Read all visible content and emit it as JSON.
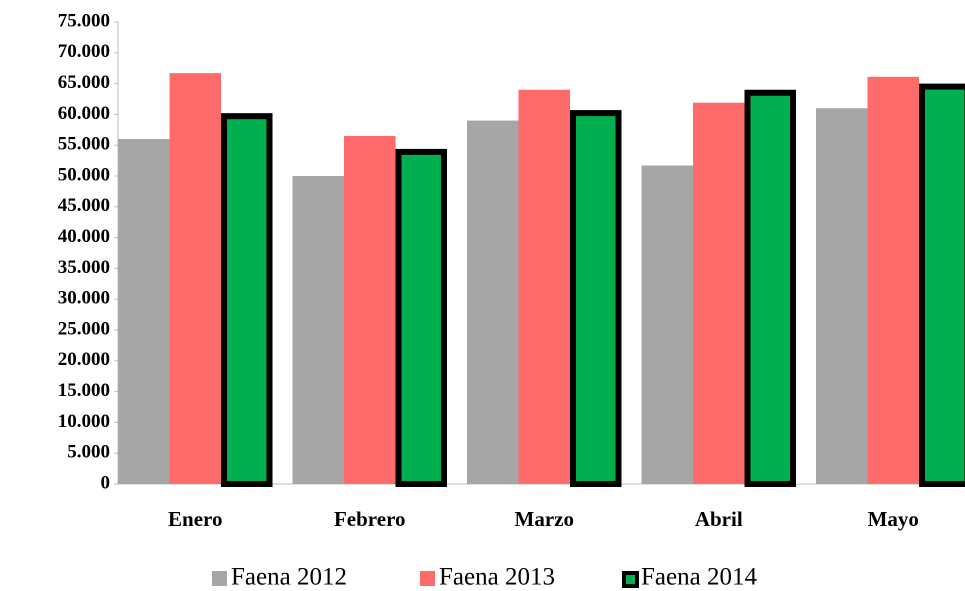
{
  "chart_data": {
    "type": "bar",
    "categories": [
      "Enero",
      "Febrero",
      "Marzo",
      "Abril",
      "Mayo"
    ],
    "series": [
      {
        "name": "Faena 2012",
        "color": "#a6a6a6",
        "values": [
          56000,
          50000,
          59000,
          51700,
          61000
        ]
      },
      {
        "name": "Faena 2013",
        "color": "#ff6b6b",
        "values": [
          66700,
          56500,
          64000,
          61900,
          66100
        ]
      },
      {
        "name": "Faena 2014",
        "color": "#00b050",
        "edgecolor": "#000000",
        "values": [
          60200,
          54400,
          60700,
          64000,
          65000
        ]
      }
    ],
    "ylim": [
      0,
      75000
    ],
    "yticks": [
      0,
      {
        "value": 5000,
        "label": "5.000"
      },
      {
        "value": 10000,
        "label": "10.000"
      },
      {
        "value": 15000,
        "label": "15.000"
      },
      {
        "value": 20000,
        "label": "20.000"
      },
      {
        "value": 25000,
        "label": "25.000"
      },
      {
        "value": 30000,
        "label": "30.000"
      },
      {
        "value": 35000,
        "label": "35.000"
      },
      {
        "value": 40000,
        "label": "40.000"
      },
      {
        "value": 45000,
        "label": "45.000"
      },
      {
        "value": 50000,
        "label": "50.000"
      },
      {
        "value": 55000,
        "label": "55.000"
      },
      {
        "value": 60000,
        "label": "60.000"
      },
      {
        "value": 65000,
        "label": "65.000"
      },
      {
        "value": 70000,
        "label": "70.000"
      },
      {
        "value": 75000,
        "label": "75.000"
      }
    ],
    "grid": false,
    "legend": "bottom"
  }
}
